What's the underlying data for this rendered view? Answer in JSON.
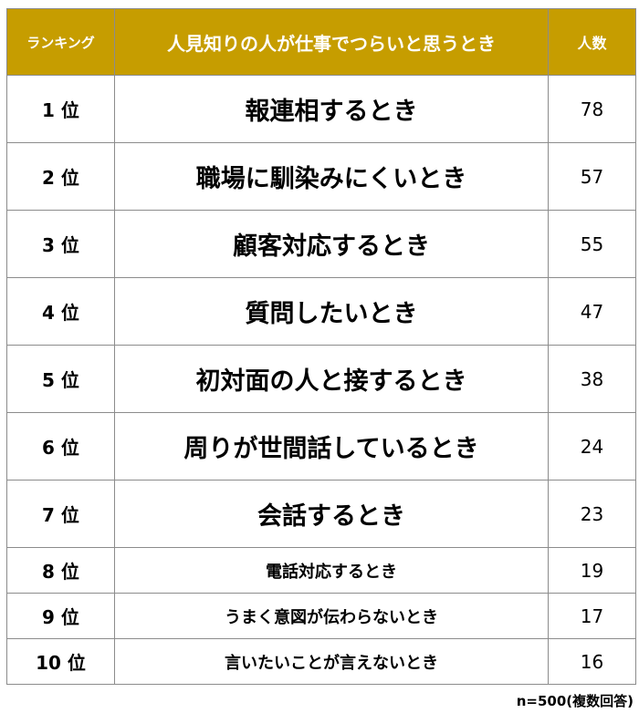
{
  "colors": {
    "header_background": "#c69d00",
    "header_text": "#ffffff",
    "border": "#8c8c8c"
  },
  "chart_data": {
    "type": "table",
    "columns": [
      "ランキング",
      "人見知りの人が仕事でつらいと思うとき",
      "人数"
    ],
    "rows": [
      {
        "rank": "1 位",
        "label": "報連相するとき",
        "value": 78
      },
      {
        "rank": "2 位",
        "label": "職場に馴染みにくいとき",
        "value": 57
      },
      {
        "rank": "3 位",
        "label": "顧客対応するとき",
        "value": 55
      },
      {
        "rank": "4 位",
        "label": "質問したいとき",
        "value": 47
      },
      {
        "rank": "5 位",
        "label": "初対面の人と接するとき",
        "value": 38
      },
      {
        "rank": "6 位",
        "label": "周りが世間話しているとき",
        "value": 24
      },
      {
        "rank": "7 位",
        "label": "会話するとき",
        "value": 23
      },
      {
        "rank": "8 位",
        "label": "電話対応するとき",
        "value": 19
      },
      {
        "rank": "9 位",
        "label": "うまく意図が伝わらないとき",
        "value": 17
      },
      {
        "rank": "10 位",
        "label": "言いたいことが言えないとき",
        "value": 16
      }
    ],
    "note": "n=500(複数回答)"
  }
}
